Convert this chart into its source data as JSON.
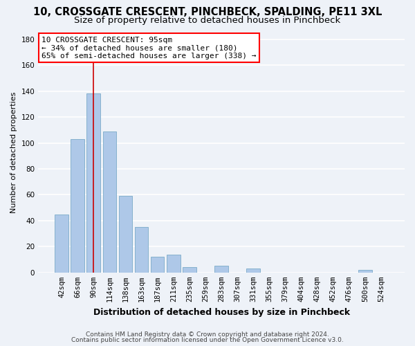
{
  "title": "10, CROSSGATE CRESCENT, PINCHBECK, SPALDING, PE11 3XL",
  "subtitle": "Size of property relative to detached houses in Pinchbeck",
  "xlabel": "Distribution of detached houses by size in Pinchbeck",
  "ylabel": "Number of detached properties",
  "footer_line1": "Contains HM Land Registry data © Crown copyright and database right 2024.",
  "footer_line2": "Contains public sector information licensed under the Open Government Licence v3.0.",
  "bar_labels": [
    "42sqm",
    "66sqm",
    "90sqm",
    "114sqm",
    "138sqm",
    "163sqm",
    "187sqm",
    "211sqm",
    "235sqm",
    "259sqm",
    "283sqm",
    "307sqm",
    "331sqm",
    "355sqm",
    "379sqm",
    "404sqm",
    "428sqm",
    "452sqm",
    "476sqm",
    "500sqm",
    "524sqm"
  ],
  "bar_values": [
    45,
    103,
    138,
    109,
    59,
    35,
    12,
    14,
    4,
    0,
    5,
    0,
    3,
    0,
    0,
    0,
    0,
    0,
    0,
    2,
    0
  ],
  "bar_color": "#aec8e8",
  "bar_edge_color": "#7aaac8",
  "reference_line_color": "#cc0000",
  "annotation_line1": "10 CROSSGATE CRESCENT: 95sqm",
  "annotation_line2": "← 34% of detached houses are smaller (180)",
  "annotation_line3": "65% of semi-detached houses are larger (338) →",
  "ylim": [
    0,
    185
  ],
  "yticks": [
    0,
    20,
    40,
    60,
    80,
    100,
    120,
    140,
    160,
    180
  ],
  "background_color": "#eef2f8",
  "grid_color": "#ffffff",
  "title_fontsize": 10.5,
  "subtitle_fontsize": 9.5,
  "tick_fontsize": 7.5,
  "ylabel_fontsize": 8,
  "xlabel_fontsize": 9
}
